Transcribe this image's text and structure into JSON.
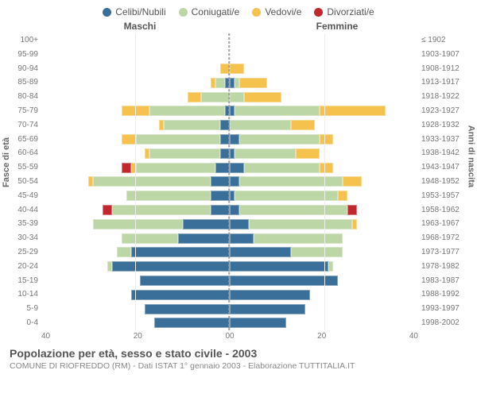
{
  "colors": {
    "celibi": "#3a6f9a",
    "coniugati": "#bcd6a5",
    "vedovi": "#f5c24e",
    "divorziati": "#c1272d",
    "grid": "#eeeeee",
    "axis_text": "#777777"
  },
  "legend": [
    {
      "label": "Celibi/Nubili",
      "color_key": "celibi"
    },
    {
      "label": "Coniugati/e",
      "color_key": "coniugati"
    },
    {
      "label": "Vedovi/e",
      "color_key": "vedovi"
    },
    {
      "label": "Divorziati/e",
      "color_key": "divorziati"
    }
  ],
  "headers": {
    "left": "Maschi",
    "right": "Femmine"
  },
  "axis_labels": {
    "left": "Fasce di età",
    "right": "Anni di nascita"
  },
  "xlim": 40,
  "xticks_left": [
    40,
    20,
    0
  ],
  "xticks_right": [
    0,
    20,
    40
  ],
  "age_labels": [
    "100+",
    "95-99",
    "90-94",
    "85-89",
    "80-84",
    "75-79",
    "70-74",
    "65-69",
    "60-64",
    "55-59",
    "50-54",
    "45-49",
    "40-44",
    "35-39",
    "30-34",
    "25-29",
    "20-24",
    "15-19",
    "10-14",
    "5-9",
    "0-4"
  ],
  "birth_labels": [
    "≤ 1902",
    "1903-1907",
    "1908-1912",
    "1913-1917",
    "1918-1922",
    "1923-1927",
    "1928-1932",
    "1933-1937",
    "1938-1942",
    "1943-1947",
    "1948-1952",
    "1953-1957",
    "1958-1962",
    "1963-1967",
    "1968-1972",
    "1973-1977",
    "1978-1982",
    "1983-1987",
    "1988-1992",
    "1993-1997",
    "1998-2002"
  ],
  "rows": [
    {
      "m": {
        "cel": 0,
        "con": 0,
        "ved": 0,
        "div": 0
      },
      "f": {
        "cel": 0,
        "con": 0,
        "ved": 0,
        "div": 0
      }
    },
    {
      "m": {
        "cel": 0,
        "con": 0,
        "ved": 0,
        "div": 0
      },
      "f": {
        "cel": 0,
        "con": 0,
        "ved": 0,
        "div": 0
      }
    },
    {
      "m": {
        "cel": 0,
        "con": 0,
        "ved": 2,
        "div": 0
      },
      "f": {
        "cel": 0,
        "con": 0,
        "ved": 3,
        "div": 0
      }
    },
    {
      "m": {
        "cel": 1,
        "con": 2,
        "ved": 1,
        "div": 0
      },
      "f": {
        "cel": 1,
        "con": 1,
        "ved": 6,
        "div": 0
      }
    },
    {
      "m": {
        "cel": 0,
        "con": 6,
        "ved": 3,
        "div": 0
      },
      "f": {
        "cel": 0,
        "con": 3,
        "ved": 8,
        "div": 0
      }
    },
    {
      "m": {
        "cel": 1,
        "con": 16,
        "ved": 6,
        "div": 0
      },
      "f": {
        "cel": 1,
        "con": 18,
        "ved": 14,
        "div": 0
      }
    },
    {
      "m": {
        "cel": 2,
        "con": 12,
        "ved": 1,
        "div": 0
      },
      "f": {
        "cel": 0,
        "con": 13,
        "ved": 5,
        "div": 0
      }
    },
    {
      "m": {
        "cel": 2,
        "con": 18,
        "ved": 3,
        "div": 0
      },
      "f": {
        "cel": 2,
        "con": 17,
        "ved": 3,
        "div": 0
      }
    },
    {
      "m": {
        "cel": 2,
        "con": 15,
        "ved": 1,
        "div": 0
      },
      "f": {
        "cel": 1,
        "con": 13,
        "ved": 5,
        "div": 0
      }
    },
    {
      "m": {
        "cel": 3,
        "con": 17,
        "ved": 1,
        "div": 2
      },
      "f": {
        "cel": 3,
        "con": 16,
        "ved": 3,
        "div": 0
      }
    },
    {
      "m": {
        "cel": 4,
        "con": 25,
        "ved": 1,
        "div": 0
      },
      "f": {
        "cel": 2,
        "con": 22,
        "ved": 4,
        "div": 0
      }
    },
    {
      "m": {
        "cel": 4,
        "con": 18,
        "ved": 0,
        "div": 0
      },
      "f": {
        "cel": 1,
        "con": 22,
        "ved": 2,
        "div": 0
      }
    },
    {
      "m": {
        "cel": 4,
        "con": 21,
        "ved": 0,
        "div": 2
      },
      "f": {
        "cel": 2,
        "con": 23,
        "ved": 0,
        "div": 2
      }
    },
    {
      "m": {
        "cel": 10,
        "con": 19,
        "ved": 0,
        "div": 0
      },
      "f": {
        "cel": 4,
        "con": 22,
        "ved": 1,
        "div": 0
      }
    },
    {
      "m": {
        "cel": 11,
        "con": 12,
        "ved": 0,
        "div": 0
      },
      "f": {
        "cel": 5,
        "con": 19,
        "ved": 0,
        "div": 0
      }
    },
    {
      "m": {
        "cel": 21,
        "con": 3,
        "ved": 0,
        "div": 0
      },
      "f": {
        "cel": 13,
        "con": 11,
        "ved": 0,
        "div": 0
      }
    },
    {
      "m": {
        "cel": 25,
        "con": 1,
        "ved": 0,
        "div": 0
      },
      "f": {
        "cel": 21,
        "con": 1,
        "ved": 0,
        "div": 0
      }
    },
    {
      "m": {
        "cel": 19,
        "con": 0,
        "ved": 0,
        "div": 0
      },
      "f": {
        "cel": 23,
        "con": 0,
        "ved": 0,
        "div": 0
      }
    },
    {
      "m": {
        "cel": 21,
        "con": 0,
        "ved": 0,
        "div": 0
      },
      "f": {
        "cel": 17,
        "con": 0,
        "ved": 0,
        "div": 0
      }
    },
    {
      "m": {
        "cel": 18,
        "con": 0,
        "ved": 0,
        "div": 0
      },
      "f": {
        "cel": 16,
        "con": 0,
        "ved": 0,
        "div": 0
      }
    },
    {
      "m": {
        "cel": 16,
        "con": 0,
        "ved": 0,
        "div": 0
      },
      "f": {
        "cel": 12,
        "con": 0,
        "ved": 0,
        "div": 0
      }
    }
  ],
  "footer": {
    "title": "Popolazione per età, sesso e stato civile - 2003",
    "subtitle": "COMUNE DI RIOFREDDO (RM) - Dati ISTAT 1° gennaio 2003 - Elaborazione TUTTITALIA.IT"
  }
}
